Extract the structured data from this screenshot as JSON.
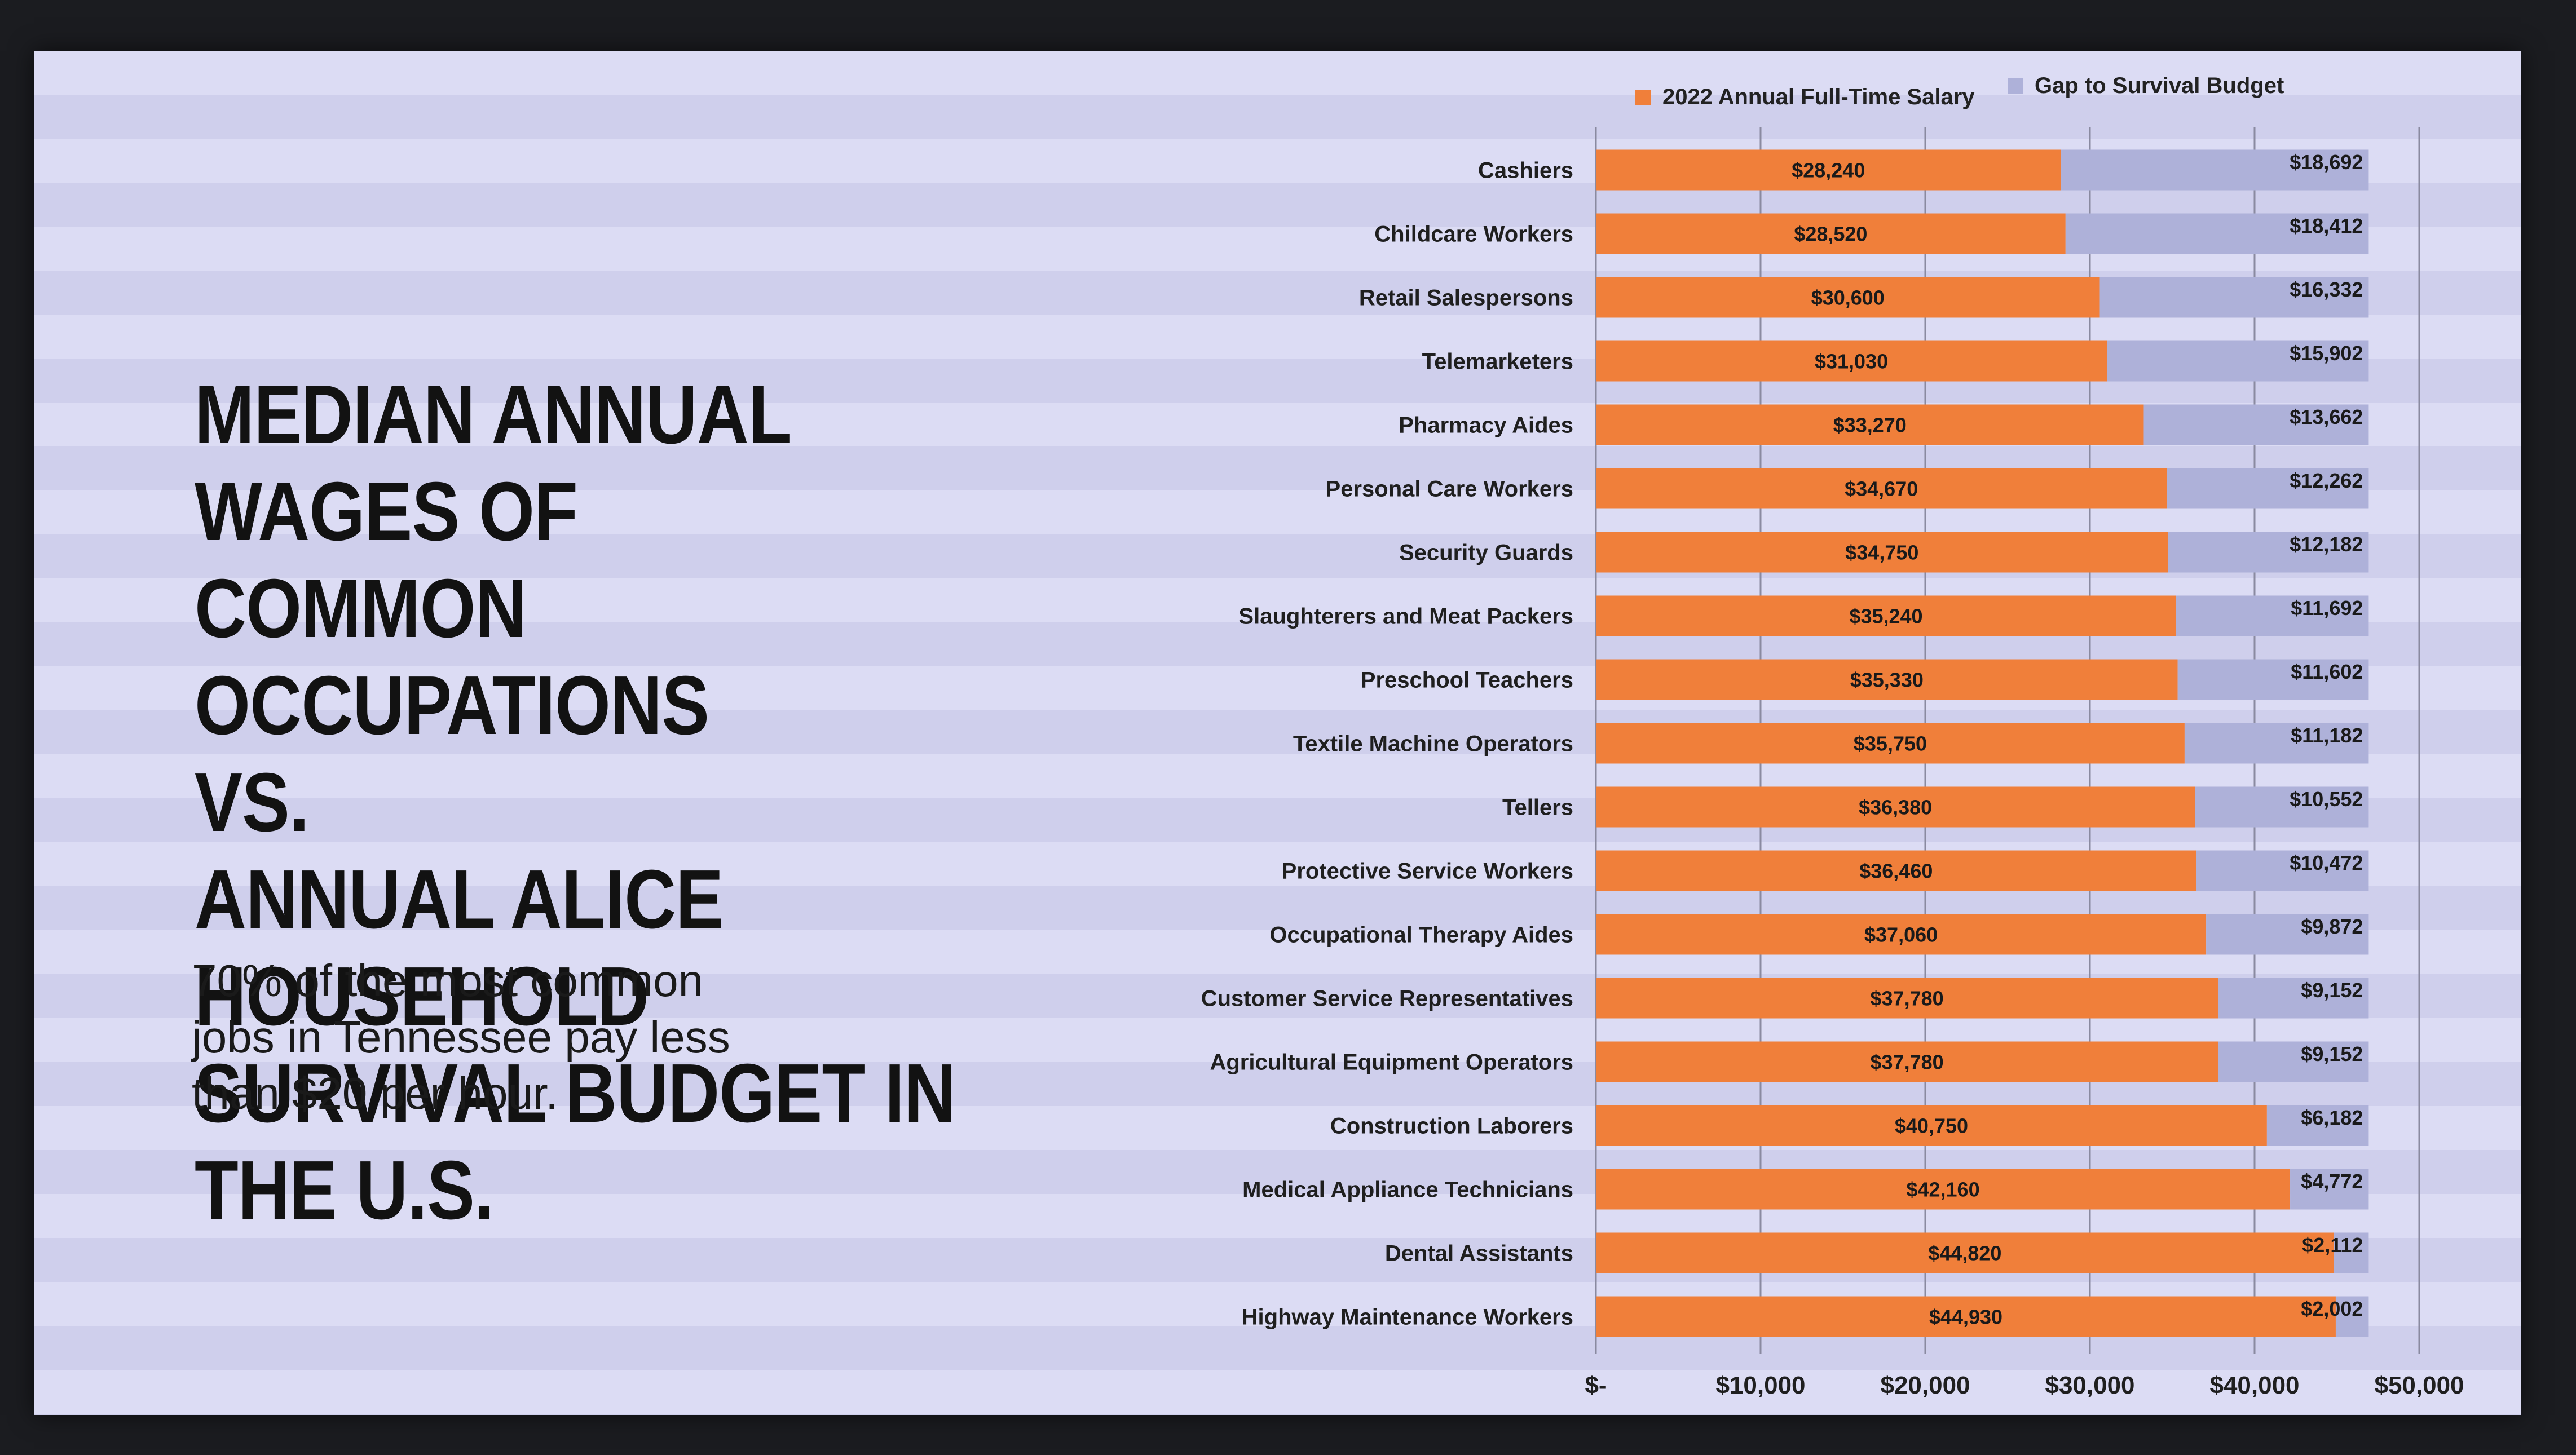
{
  "slide": {
    "headline": "MEDIAN ANNUAL WAGES OF\nCOMMON OCCUPATIONS\nVS.\nANNUAL ALICE HOUSEHOLD\nSURVIVAL BUDGET IN THE U.S.",
    "subtext": "70% of the most common\njobs in Tennessee pay less\nthan $20 per hour."
  },
  "colors": {
    "salary": "#f07f3a",
    "gap": "#aeb1d9",
    "text": "#1f1f1f",
    "grid": "#8a8aa0"
  },
  "chart_data": {
    "type": "bar",
    "orientation": "horizontal",
    "stacked": true,
    "legend_position": "top",
    "grid": true,
    "xlim": [
      0,
      50000
    ],
    "x_ticks": [
      0,
      10000,
      20000,
      30000,
      40000,
      50000
    ],
    "x_tick_labels": [
      "$-",
      "$10,000",
      "$20,000",
      "$30,000",
      "$40,000",
      "$50,000"
    ],
    "categories": [
      "Cashiers",
      "Childcare Workers",
      "Retail Salespersons",
      "Telemarketers",
      "Pharmacy Aides",
      "Personal Care Workers",
      "Security Guards",
      "Slaughterers and Meat Packers",
      "Preschool Teachers",
      "Textile Machine Operators",
      "Tellers",
      "Protective Service Workers",
      "Occupational Therapy Aides",
      "Customer Service Representatives",
      "Agricultural Equipment Operators",
      "Construction Laborers",
      "Medical Appliance Technicians",
      "Dental Assistants",
      "Highway Maintenance Workers"
    ],
    "series": [
      {
        "name": "2022 Annual Full-Time Salary",
        "values": [
          28240,
          28520,
          30600,
          31030,
          33270,
          34670,
          34750,
          35240,
          35330,
          35750,
          36380,
          36460,
          37060,
          37780,
          37780,
          40750,
          42160,
          44820,
          44930
        ],
        "labels": [
          "$28,240",
          "$28,520",
          "$30,600",
          "$31,030",
          "$33,270",
          "$34,670",
          "$34,750",
          "$35,240",
          "$35,330",
          "$35,750",
          "$36,380",
          "$36,460",
          "$37,060",
          "$37,780",
          "$37,780",
          "$40,750",
          "$42,160",
          "$44,820",
          "$44,930"
        ]
      },
      {
        "name": "Gap to Survival Budget",
        "values": [
          18692,
          18412,
          16332,
          15902,
          13662,
          12262,
          12182,
          11692,
          11602,
          11182,
          10552,
          10472,
          9872,
          9152,
          9152,
          6182,
          4772,
          2112,
          2002
        ],
        "labels": [
          "$18,692",
          "$18,412",
          "$16,332",
          "$15,902",
          "$13,662",
          "$12,262",
          "$12,182",
          "$11,692",
          "$11,602",
          "$11,182",
          "$10,552",
          "$10,472",
          "$9,872",
          "$9,152",
          "$9,152",
          "$6,182",
          "$4,772",
          "$2,112",
          "$2,002"
        ]
      }
    ]
  }
}
